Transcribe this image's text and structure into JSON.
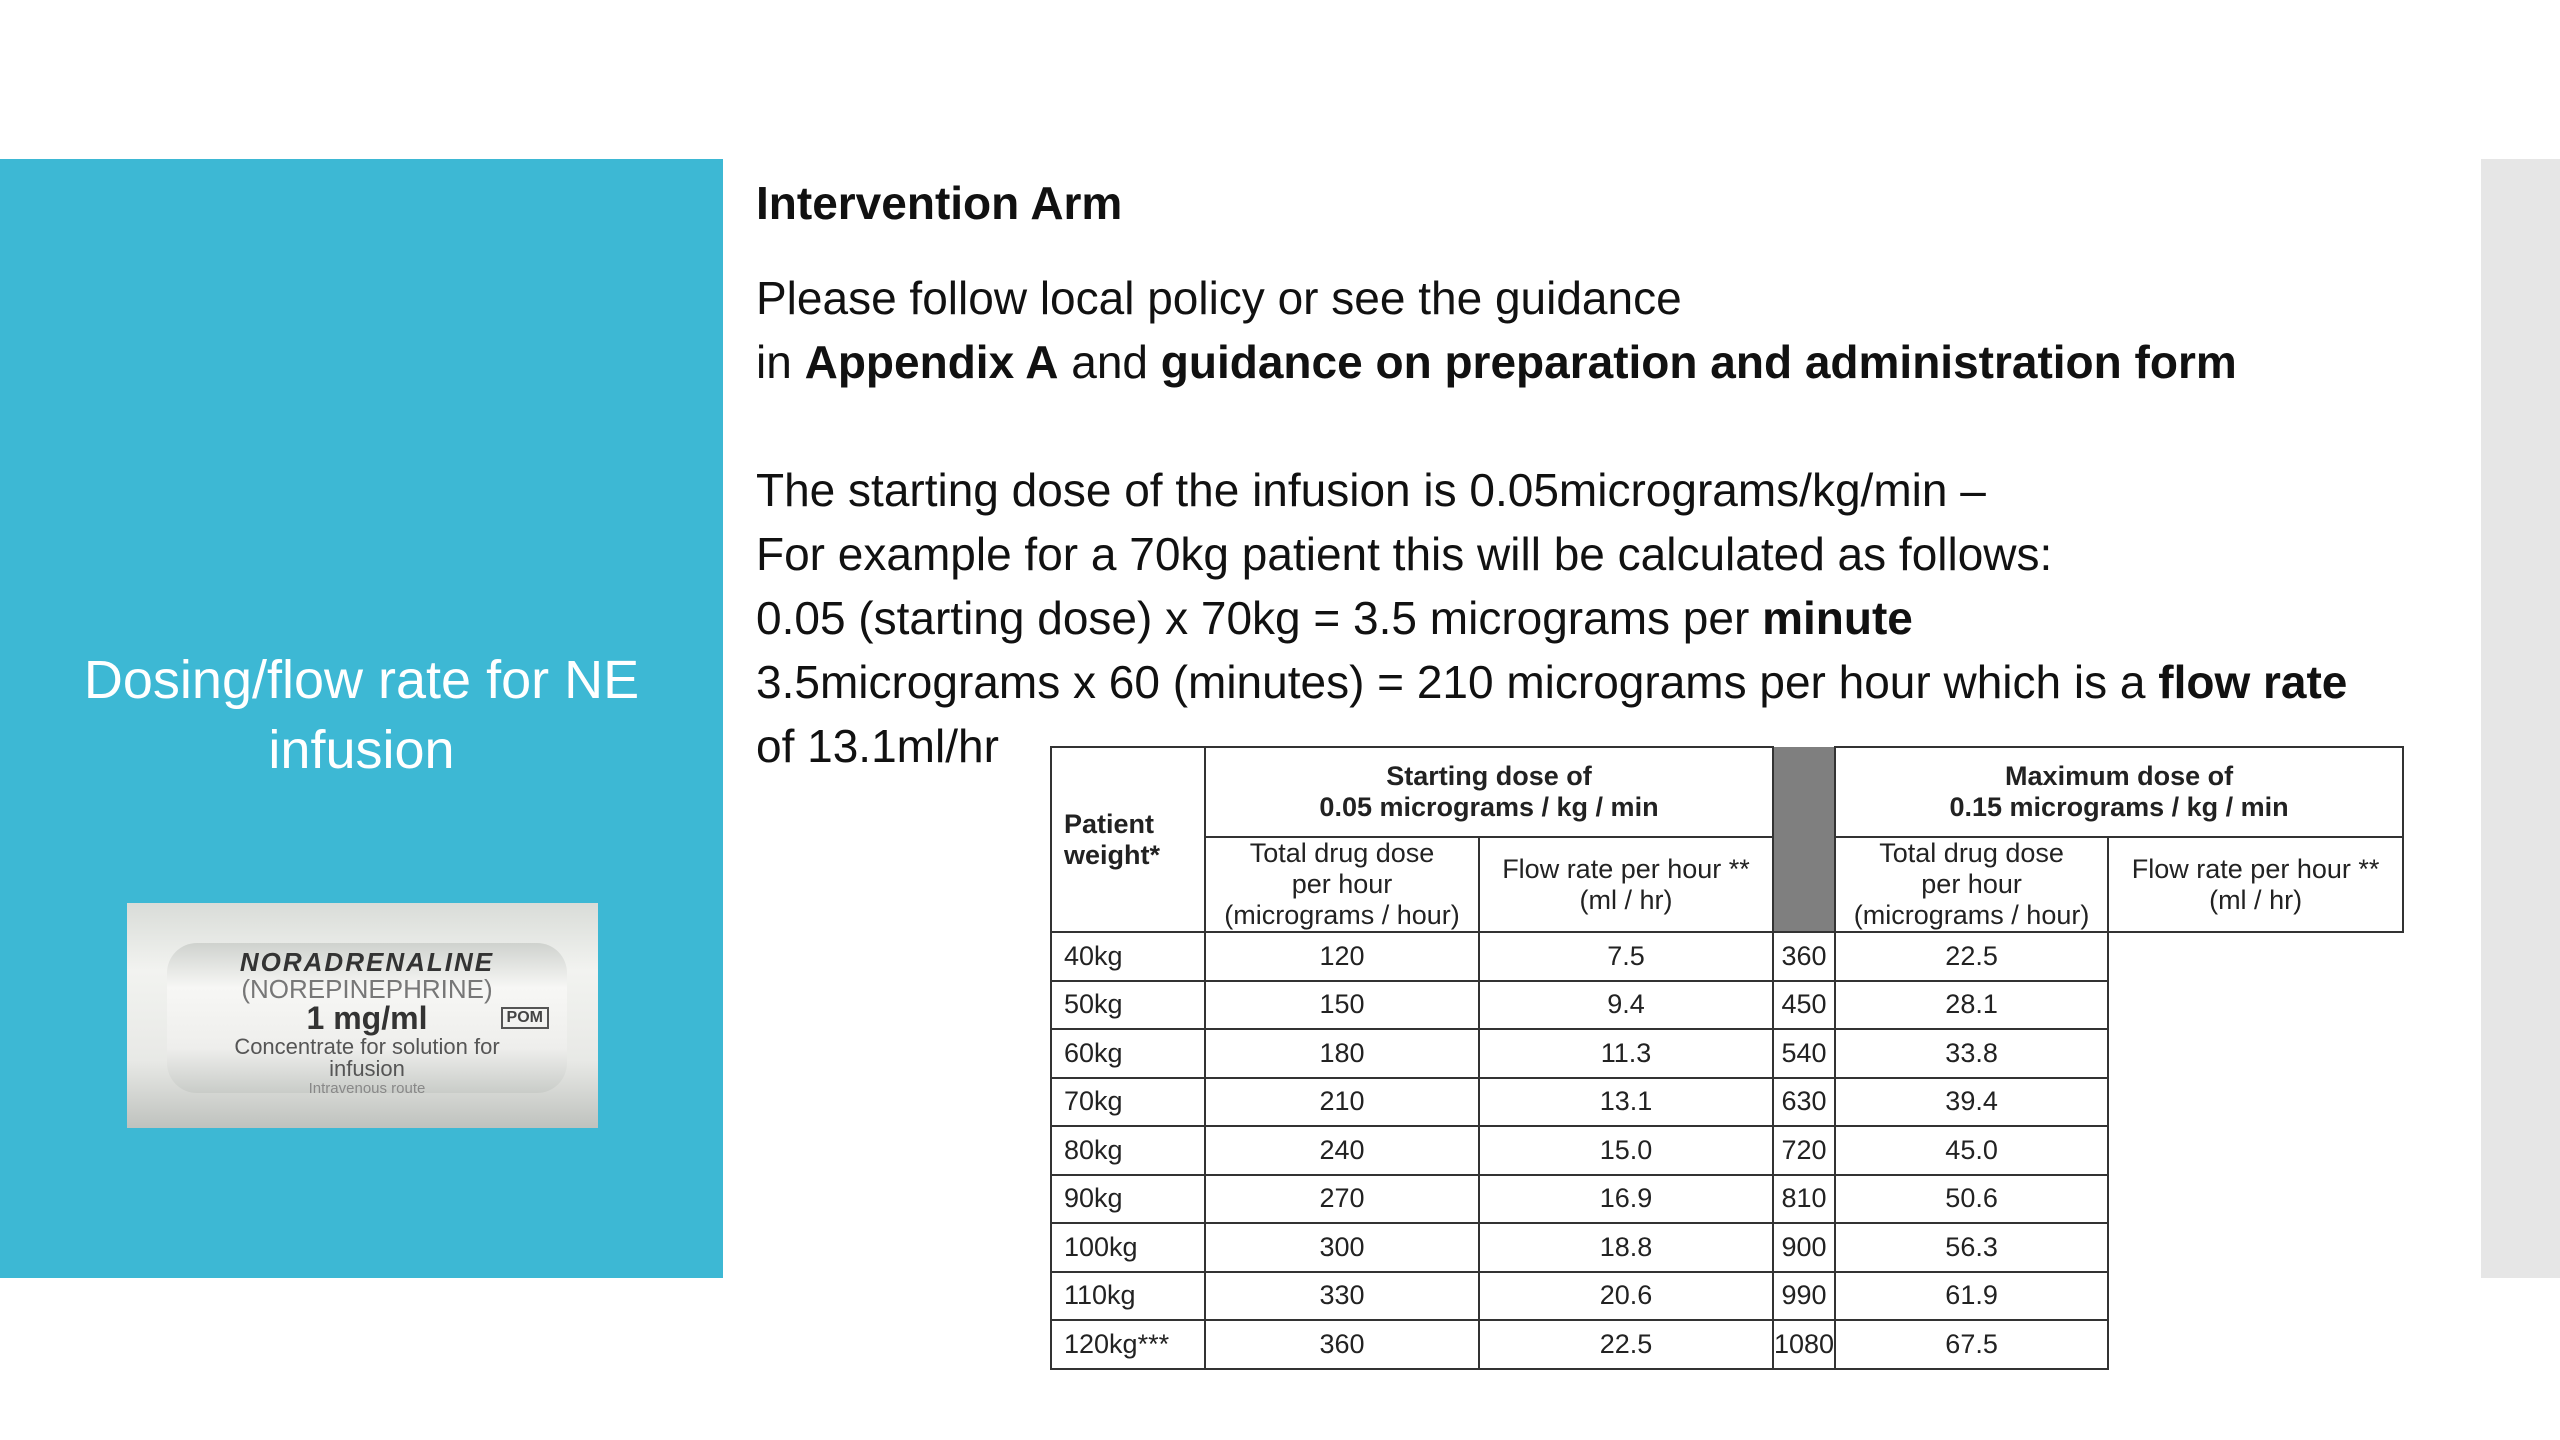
{
  "sidebar": {
    "title": "Dosing/flow rate for NE infusion",
    "accent": "#3db8d4",
    "photo": {
      "line1": "NORADRENALINE",
      "line2": "(NOREPINEPHRINE)",
      "line3": "1 mg/ml",
      "badge": "POM",
      "line4": "Concentrate for solution for",
      "line5": "infusion",
      "line6": "Intravenous route"
    }
  },
  "main": {
    "heading": "Intervention Arm",
    "p1a": "Please follow local policy or see the guidance",
    "p1b_pre": "in ",
    "p1b_b1": "Appendix A",
    "p1b_mid": " and ",
    "p1b_b2": "guidance on preparation and administration form",
    "l1": "The starting dose of the infusion is 0.05micrograms/kg/min –",
    "l2": "For example for a 70kg patient this will be calculated as follows:",
    "l3_pre": "0.05 (starting dose) x 70kg = 3.5 micrograms per ",
    "l3_b": "minute",
    "l4_pre": "3.5micrograms x 60 (minutes) = 210 micrograms per hour which is a ",
    "l4_b": "flow rate",
    "l5": "of 13.1ml/hr"
  },
  "table": {
    "weight_header": "Patient weight*",
    "group1": [
      "Starting dose of",
      "0.05 micrograms / kg / min"
    ],
    "group2": [
      "Maximum dose of",
      "0.15 micrograms / kg / min"
    ],
    "sub1": [
      "Total drug dose",
      "per hour",
      "(micrograms / hour)"
    ],
    "sub2": [
      "Flow rate per hour **",
      "(ml / hr)"
    ],
    "rows": [
      [
        "40kg",
        "120",
        "7.5",
        "360",
        "22.5"
      ],
      [
        "50kg",
        "150",
        "9.4",
        "450",
        "28.1"
      ],
      [
        "60kg",
        "180",
        "11.3",
        "540",
        "33.8"
      ],
      [
        "70kg",
        "210",
        "13.1",
        "630",
        "39.4"
      ],
      [
        "80kg",
        "240",
        "15.0",
        "720",
        "45.0"
      ],
      [
        "90kg",
        "270",
        "16.9",
        "810",
        "50.6"
      ],
      [
        "100kg",
        "300",
        "18.8",
        "900",
        "56.3"
      ],
      [
        "110kg",
        "330",
        "20.6",
        "990",
        "61.9"
      ],
      [
        "120kg***",
        "360",
        "22.5",
        "1080",
        "67.5"
      ]
    ]
  }
}
